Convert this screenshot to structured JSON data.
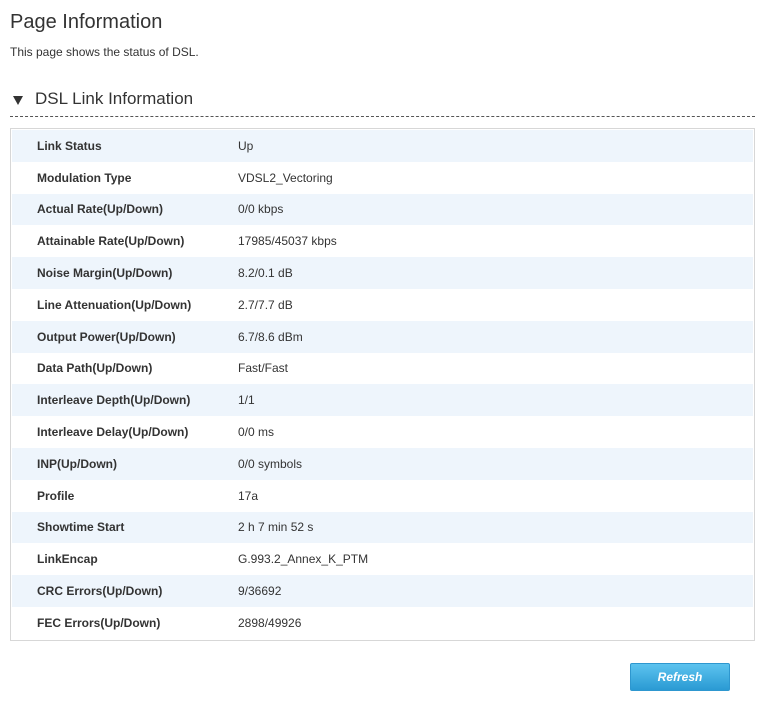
{
  "page": {
    "title": "Page Information",
    "description": "This page shows the status of DSL."
  },
  "section": {
    "title": "DSL Link Information",
    "expanded": true,
    "icon": "triangle-down-icon"
  },
  "rows": [
    {
      "label": "Link Status",
      "value": "Up"
    },
    {
      "label": "Modulation Type",
      "value": "VDSL2_Vectoring"
    },
    {
      "label": "Actual Rate(Up/Down)",
      "value": "0/0 kbps"
    },
    {
      "label": "Attainable Rate(Up/Down)",
      "value": "17985/45037 kbps"
    },
    {
      "label": "Noise Margin(Up/Down)",
      "value": "8.2/0.1 dB"
    },
    {
      "label": "Line Attenuation(Up/Down)",
      "value": "2.7/7.7 dB"
    },
    {
      "label": "Output Power(Up/Down)",
      "value": "6.7/8.6 dBm"
    },
    {
      "label": "Data Path(Up/Down)",
      "value": "Fast/Fast"
    },
    {
      "label": "Interleave Depth(Up/Down)",
      "value": "1/1"
    },
    {
      "label": "Interleave Delay(Up/Down)",
      "value": "0/0 ms"
    },
    {
      "label": "INP(Up/Down)",
      "value": "0/0 symbols"
    },
    {
      "label": "Profile",
      "value": "17a"
    },
    {
      "label": "Showtime Start",
      "value": "2 h 7 min 52 s"
    },
    {
      "label": "LinkEncap",
      "value": "G.993.2_Annex_K_PTM"
    },
    {
      "label": "CRC Errors(Up/Down)",
      "value": "9/36692"
    },
    {
      "label": "FEC Errors(Up/Down)",
      "value": "2898/49926"
    }
  ],
  "actions": {
    "refresh_label": "Refresh"
  },
  "colors": {
    "row_stripe": "#eef5fc",
    "button_top": "#5cc3ef",
    "button_bottom": "#2a9ad3"
  }
}
